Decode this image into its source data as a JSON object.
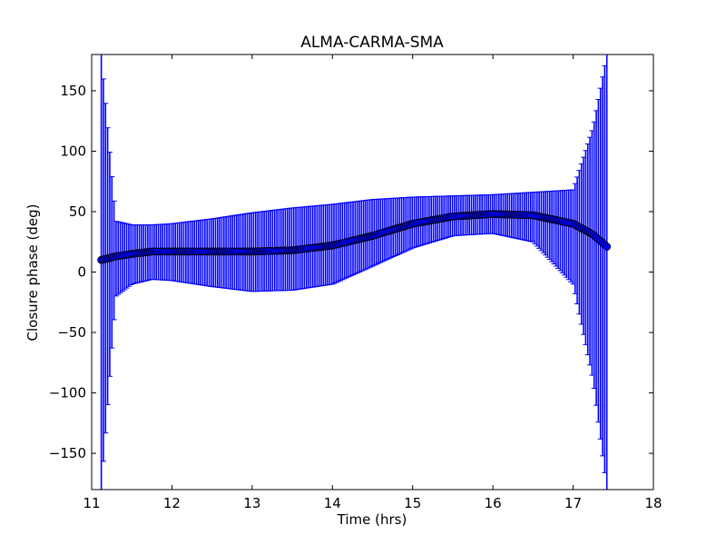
{
  "chart_data": {
    "type": "scatter",
    "title": "ALMA-CARMA-SMA",
    "xlabel": "Time (hrs)",
    "ylabel": "Closure phase (deg)",
    "xlim": [
      11,
      18
    ],
    "ylim": [
      -180,
      180
    ],
    "xticks": [
      11,
      12,
      13,
      14,
      15,
      16,
      17,
      18
    ],
    "yticks": [
      -150,
      -100,
      -50,
      0,
      50,
      100,
      150
    ],
    "ytick_labels": [
      "−150",
      "−100",
      "−50",
      "0",
      "50",
      "100",
      "150"
    ],
    "grid": false,
    "series": [
      {
        "marker": "circle",
        "color": "#0000ff",
        "edge_color": "#000000",
        "error_color": "#0000ff",
        "x": [
          11.12,
          11.3,
          11.5,
          11.75,
          12.0,
          12.5,
          13.0,
          13.5,
          14.0,
          14.5,
          15.0,
          15.5,
          16.0,
          16.5,
          17.0,
          17.25,
          17.42
        ],
        "y": [
          10,
          13,
          15,
          17,
          17,
          17,
          17,
          18,
          22,
          30,
          40,
          46,
          48,
          47,
          40,
          31,
          21
        ],
        "err_upper": [
          180,
          42,
          39,
          39,
          40,
          44,
          49,
          53,
          56,
          60,
          62,
          63,
          64,
          66,
          68,
          120,
          180
        ],
        "err_lower": [
          -180,
          -20,
          -10,
          -6,
          -7,
          -12,
          -16,
          -15,
          -10,
          5,
          20,
          30,
          32,
          25,
          -10,
          -90,
          -180
        ]
      }
    ]
  }
}
